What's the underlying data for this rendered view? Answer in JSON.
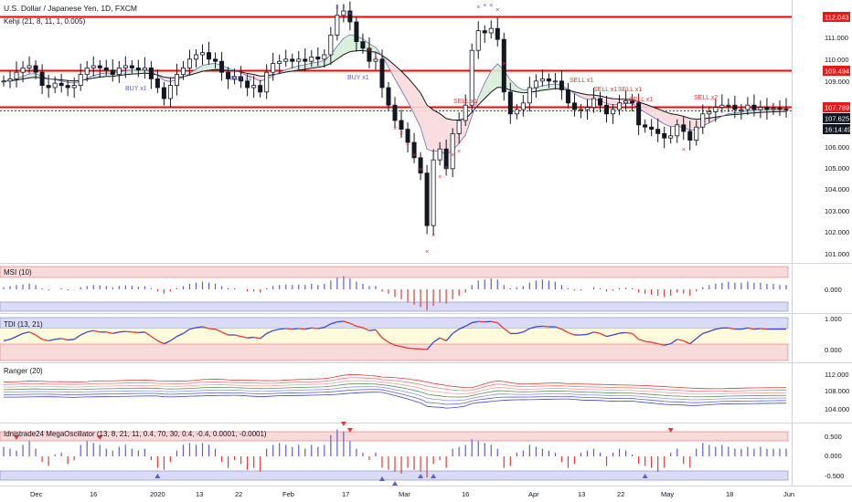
{
  "header": {
    "symbol_title": "U.S. Dollar / Japanese Yen, 1D, FXCM",
    "indicator_label": "Kehji (21, 8, 11, 1, 0.005)"
  },
  "colors": {
    "up": "#000000",
    "down": "#000000",
    "red_line": "#ff0000",
    "blue_line": "#3c46c8",
    "band_blue": "#dadcf5",
    "band_pink": "#f8dada",
    "band_yellow": "#fdfbdc",
    "price_tag_red": "#e51b1b",
    "price_tag_black": "#131722"
  },
  "x_axis": {
    "labels": [
      "Dec",
      "16",
      "2020",
      "13",
      "22",
      "Feb",
      "17",
      "Mar",
      "16",
      "Apr",
      "13",
      "22",
      "May",
      "18",
      "Jun"
    ]
  },
  "price_axis": {
    "ticks": [
      "112.043",
      "111.000",
      "110.000",
      "109.494",
      "109.000",
      "107.789",
      "107.625",
      "16:14:49",
      "106.000",
      "105.000",
      "104.000",
      "103.000",
      "102.000",
      "101.000"
    ],
    "tags": {
      "level_1": "112.043",
      "level_2": "109.494",
      "level_3": "107.789",
      "last_price": "107.625",
      "countdown": "16:14:49"
    }
  },
  "signals": [
    "BUY x1",
    "BUY x1",
    "BUY x1",
    "SELL x1",
    "SELL x1",
    "SELL x1",
    "SELL x1",
    "SELL x1",
    "SELL x2"
  ],
  "panels": {
    "msi": {
      "label": "MSI (10)",
      "ticks": [
        "0.000"
      ]
    },
    "tdi": {
      "label": "TDI (13, 21)",
      "ticks": [
        "1.000",
        "0.000"
      ]
    },
    "ranger": {
      "label": "Ranger (20)",
      "ticks": [
        "112.000",
        "108.000",
        "104.000"
      ]
    },
    "mega": {
      "label": "Idnistrade24 MegaOscillator (13, 8, 21, 11, 0.4, 70, 30, 0.4, -0.4, 0.0001, -0.0001)",
      "ticks": [
        "0.500",
        "0.000",
        "-0.500"
      ]
    }
  },
  "chart_data": {
    "type": "candlestick",
    "title": "U.S. Dollar / Japanese Yen, 1D, FXCM",
    "horizontal_levels": [
      112.043,
      109.494,
      107.789
    ],
    "last_price": 107.625,
    "y_range": [
      100.6,
      112.6
    ],
    "date_labels": [
      "Dec",
      "16",
      "2020",
      "13",
      "22",
      "Feb",
      "17",
      "Mar",
      "16",
      "Apr",
      "13",
      "22",
      "May",
      "18",
      "Jun"
    ],
    "close": [
      108.9,
      109.0,
      109.3,
      109.5,
      109.6,
      109.3,
      108.7,
      108.6,
      108.8,
      108.7,
      108.6,
      108.7,
      109.2,
      109.5,
      109.6,
      109.5,
      109.4,
      109.2,
      109.5,
      109.6,
      109.5,
      109.4,
      109.5,
      109.0,
      108.6,
      108.1,
      108.7,
      109.2,
      109.5,
      109.9,
      110.1,
      110.2,
      109.9,
      109.8,
      109.3,
      109.0,
      109.1,
      108.9,
      108.6,
      108.7,
      108.4,
      109.3,
      109.7,
      109.8,
      109.9,
      109.8,
      109.9,
      109.8,
      110.0,
      109.9,
      110.1,
      111.0,
      111.9,
      112.1,
      111.6,
      110.7,
      110.4,
      109.8,
      109.9,
      108.6,
      107.8,
      107.1,
      106.7,
      106.1,
      105.4,
      104.7,
      102.3,
      105.3,
      105.8,
      104.9,
      106.5,
      107.1,
      107.8,
      110.3,
      111.2,
      111.1,
      111.3,
      110.8,
      108.4,
      107.4,
      107.6,
      107.9,
      108.6,
      108.9,
      109.0,
      108.9,
      108.9,
      108.5,
      107.9,
      107.6,
      107.6,
      107.7,
      108.1,
      107.8,
      107.4,
      107.6,
      107.9,
      108.0,
      107.9,
      106.9,
      106.8,
      106.7,
      106.5,
      106.3,
      106.4,
      106.9,
      106.6,
      106.2,
      106.8,
      107.4,
      107.5,
      107.7,
      107.8,
      107.8,
      107.6,
      107.6,
      107.8,
      107.6,
      107.7,
      107.6,
      107.65,
      107.63,
      107.62
    ],
    "msi": [
      0.1,
      0.15,
      0.2,
      0.22,
      0.25,
      0.2,
      0.05,
      -0.05,
      0.0,
      0.05,
      -0.05,
      -0.02,
      0.1,
      0.15,
      0.2,
      0.18,
      0.15,
      0.1,
      0.15,
      0.18,
      0.16,
      0.12,
      0.15,
      0.05,
      -0.1,
      -0.2,
      -0.1,
      0.05,
      0.15,
      0.25,
      0.3,
      0.35,
      0.3,
      0.25,
      0.15,
      0.05,
      0.05,
      0.0,
      -0.1,
      -0.1,
      -0.15,
      0.05,
      0.15,
      0.2,
      0.22,
      0.2,
      0.22,
      0.2,
      0.25,
      0.2,
      0.25,
      0.4,
      0.55,
      0.6,
      0.5,
      0.35,
      0.25,
      0.15,
      0.15,
      -0.1,
      -0.2,
      -0.35,
      -0.45,
      -0.6,
      -0.7,
      -0.8,
      -0.95,
      -0.75,
      -0.6,
      -0.65,
      -0.45,
      -0.3,
      -0.15,
      0.2,
      0.4,
      0.45,
      0.5,
      0.45,
      0.2,
      0.05,
      0.1,
      0.15,
      0.3,
      0.4,
      0.45,
      0.4,
      0.35,
      0.2,
      0.05,
      -0.05,
      -0.05,
      0.0,
      0.1,
      0.05,
      -0.1,
      -0.05,
      0.05,
      0.08,
      0.05,
      -0.15,
      -0.2,
      -0.25,
      -0.3,
      -0.35,
      -0.3,
      -0.15,
      -0.2,
      -0.3,
      -0.1,
      0.1,
      0.2,
      0.25,
      0.3,
      0.35,
      0.3,
      0.3,
      0.35,
      0.3,
      0.3,
      0.25,
      0.25,
      0.2,
      0.2
    ],
    "tdi": [
      0.3,
      0.35,
      0.45,
      0.55,
      0.6,
      0.5,
      0.35,
      0.3,
      0.35,
      0.38,
      0.33,
      0.35,
      0.5,
      0.6,
      0.65,
      0.6,
      0.6,
      0.55,
      0.6,
      0.62,
      0.6,
      0.58,
      0.6,
      0.45,
      0.3,
      0.2,
      0.3,
      0.45,
      0.55,
      0.7,
      0.75,
      0.78,
      0.72,
      0.7,
      0.6,
      0.5,
      0.5,
      0.45,
      0.4,
      0.42,
      0.38,
      0.55,
      0.65,
      0.7,
      0.72,
      0.7,
      0.72,
      0.7,
      0.74,
      0.72,
      0.76,
      0.88,
      0.95,
      0.97,
      0.9,
      0.8,
      0.75,
      0.65,
      0.68,
      0.4,
      0.25,
      0.15,
      0.1,
      0.05,
      0.03,
      0.02,
      0.0,
      0.25,
      0.4,
      0.3,
      0.55,
      0.7,
      0.8,
      0.92,
      0.96,
      0.95,
      0.96,
      0.92,
      0.72,
      0.55,
      0.55,
      0.6,
      0.72,
      0.78,
      0.8,
      0.78,
      0.78,
      0.7,
      0.58,
      0.5,
      0.5,
      0.52,
      0.6,
      0.55,
      0.45,
      0.5,
      0.56,
      0.58,
      0.55,
      0.35,
      0.28,
      0.25,
      0.2,
      0.15,
      0.2,
      0.35,
      0.3,
      0.2,
      0.38,
      0.55,
      0.62,
      0.7,
      0.74,
      0.74,
      0.7,
      0.7,
      0.74,
      0.7,
      0.72,
      0.7,
      0.7,
      0.7,
      0.7
    ],
    "mega": [
      0.25,
      0.2,
      0.15,
      0.3,
      0.4,
      0.2,
      -0.15,
      -0.25,
      0.05,
      0.1,
      -0.2,
      -0.1,
      0.3,
      0.4,
      0.35,
      0.3,
      0.2,
      0.15,
      0.25,
      0.3,
      0.2,
      0.15,
      0.2,
      -0.1,
      -0.3,
      -0.35,
      -0.15,
      0.15,
      0.3,
      0.35,
      0.3,
      0.35,
      0.3,
      0.2,
      -0.15,
      -0.3,
      -0.1,
      -0.2,
      -0.35,
      -0.3,
      -0.4,
      0.2,
      0.3,
      0.35,
      0.3,
      0.25,
      0.3,
      0.2,
      0.3,
      0.25,
      0.3,
      0.55,
      0.7,
      0.65,
      0.4,
      0.2,
      0.1,
      -0.1,
      0.1,
      -0.3,
      -0.35,
      -0.4,
      -0.45,
      -0.3,
      -0.35,
      -0.4,
      -0.55,
      -0.2,
      -0.1,
      -0.3,
      0.2,
      0.25,
      0.3,
      0.45,
      0.4,
      0.35,
      0.3,
      0.2,
      -0.3,
      -0.25,
      0.1,
      0.15,
      0.3,
      0.25,
      0.2,
      0.15,
      0.1,
      -0.15,
      -0.3,
      -0.2,
      0.1,
      0.15,
      0.2,
      0.1,
      -0.25,
      0.1,
      0.2,
      0.15,
      0.05,
      -0.2,
      -0.25,
      -0.3,
      -0.4,
      -0.3,
      0.1,
      0.2,
      -0.2,
      -0.3,
      0.2,
      0.35,
      0.3,
      0.25,
      0.3,
      0.25,
      0.2,
      0.2,
      0.25,
      0.2,
      0.25,
      0.2,
      0.2,
      0.2,
      0.2
    ]
  }
}
